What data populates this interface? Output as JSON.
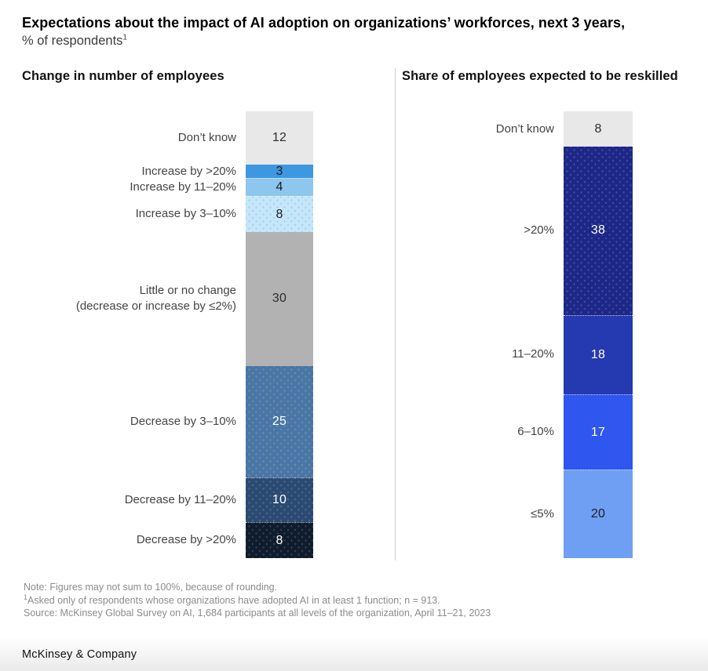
{
  "header": {
    "title": "Expectations about the impact of AI adoption on organizations’ workforces, next 3 years,",
    "subtitle": "% of respondents",
    "subtitle_footnote_mark": "1"
  },
  "chart_data": [
    {
      "type": "bar",
      "stacked": true,
      "orientation": "vertical",
      "title": "Change in number of employees",
      "unit": "% of respondents",
      "total_note": "values are percentages, may not sum to 100 due to rounding",
      "categories": [
        "Don’t know",
        "Increase by >20%",
        "Increase by 11–20%",
        "Increase by 3–10%",
        "Little or no change (decrease or increase by ≤2%)",
        "Decrease by 3–10%",
        "Decrease by 11–20%",
        "Decrease by >20%"
      ],
      "values": [
        12,
        3,
        4,
        8,
        30,
        25,
        10,
        8
      ],
      "segments": [
        {
          "label_lines": [
            "Don’t know"
          ],
          "value": 12,
          "color": "#e8e8e8",
          "value_color": "#2b2b2b",
          "sep": false,
          "texture": null
        },
        {
          "label_lines": [
            "Increase by >20%"
          ],
          "value": 3,
          "color": "#3e97e1",
          "value_color": "#1d1d1d",
          "sep": false,
          "texture": null
        },
        {
          "label_lines": [
            "Increase by 11–20%"
          ],
          "value": 4,
          "color": "#8dc7ee",
          "value_color": "#1d1d1d",
          "sep": true,
          "texture": null
        },
        {
          "label_lines": [
            "Increase by 3–10%"
          ],
          "value": 8,
          "color": "#c6e7fa",
          "value_color": "#1d1d1d",
          "sep": true,
          "texture": "blue-dots"
        },
        {
          "label_lines": [
            "Little or no change",
            "(decrease or increase by ≤2%)"
          ],
          "value": 30,
          "color": "#b2b2b2",
          "value_color": "#2b2b2b",
          "sep": false,
          "texture": null
        },
        {
          "label_lines": [
            "Decrease by 3–10%"
          ],
          "value": 25,
          "color": "#4a76a5",
          "value_color": "#ffffff",
          "sep": false,
          "texture": "white-dots"
        },
        {
          "label_lines": [
            "Decrease by 11–20%"
          ],
          "value": 10,
          "color": "#2b4a72",
          "value_color": "#ffffff",
          "sep": true,
          "texture": "white-dots"
        },
        {
          "label_lines": [
            "Decrease by >20%"
          ],
          "value": 8,
          "color": "#0e1c2e",
          "value_color": "#ffffff",
          "sep": true,
          "texture": "white-dots"
        }
      ]
    },
    {
      "type": "bar",
      "stacked": true,
      "orientation": "vertical",
      "title": "Share of employees expected to be reskilled",
      "unit": "% of respondents",
      "categories": [
        "Don’t know",
        ">20%",
        "11–20%",
        "6–10%",
        "≤5%"
      ],
      "values": [
        8,
        38,
        18,
        17,
        20
      ],
      "segments": [
        {
          "label_lines": [
            "Don’t know"
          ],
          "value": 8,
          "color": "#e8e8e8",
          "value_color": "#2b2b2b",
          "sep": false,
          "texture": null
        },
        {
          "label_lines": [
            ">20%"
          ],
          "value": 38,
          "color": "#1d2787",
          "value_color": "#ffffff",
          "sep": false,
          "texture": "white-dots"
        },
        {
          "label_lines": [
            "11–20%"
          ],
          "value": 18,
          "color": "#2539b0",
          "value_color": "#ffffff",
          "sep": true,
          "texture": null
        },
        {
          "label_lines": [
            "6–10%"
          ],
          "value": 17,
          "color": "#2f56ef",
          "value_color": "#ffffff",
          "sep": true,
          "texture": null
        },
        {
          "label_lines": [
            "≤5%"
          ],
          "value": 20,
          "color": "#6f9ff3",
          "value_color": "#1d1d1d",
          "sep": true,
          "texture": null
        }
      ]
    }
  ],
  "notes": {
    "line1": "Note: Figures may not sum to 100%, because of rounding.",
    "line2_mark": "1",
    "line2": "Asked only of respondents whose organizations have adopted AI in at least 1 function; n = 913.",
    "line3": "Source: McKinsey Global Survey on AI, 1,684 participants at all levels of the organization, April 11–21, 2023"
  },
  "footer": {
    "brand": "McKinsey & Company"
  }
}
